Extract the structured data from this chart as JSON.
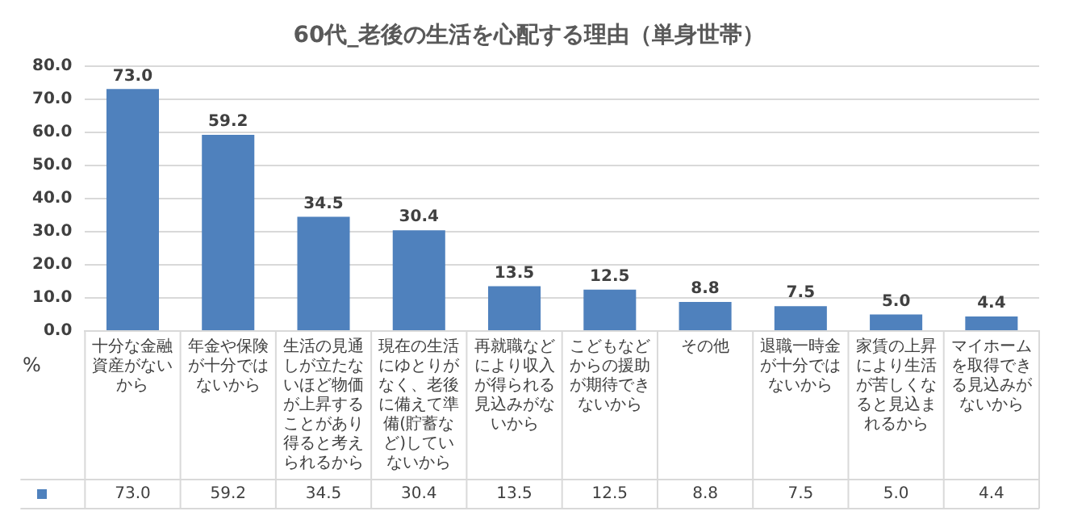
{
  "chart_data": {
    "type": "bar",
    "title": "60代_老後の生活を心配する理由（単身世帯）",
    "ylabel": "%",
    "categories": [
      "十分な金融資産がないから",
      "年金や保険が十分ではないから",
      "生活の見通しが立たないほど物価が上昇することがあり得ると考えられるから",
      "現在の生活にゆとりがなく、老後に備えて準備(貯蓄など)していないから",
      "再就職などにより収入が得られる見込みがないから",
      "こどもなどからの援助が期待できないから",
      "その他",
      "退職一時金が十分ではないから",
      "家賃の上昇により生活が苦しくなると見込まれるから",
      "マイホームを取得できる見込みがないから"
    ],
    "values": [
      73.0,
      59.2,
      34.5,
      30.4,
      13.5,
      12.5,
      8.8,
      7.5,
      5.0,
      4.4
    ],
    "value_labels": [
      "73.0",
      "59.2",
      "34.5",
      "30.4",
      "13.5",
      "12.5",
      "8.8",
      "7.5",
      "5.0",
      "4.4"
    ],
    "color": "#4f81bd",
    "ylim": [
      0,
      80
    ],
    "yticks": [
      {
        "value": 0,
        "label": "0.0"
      },
      {
        "value": 10,
        "label": "10.0"
      },
      {
        "value": 20,
        "label": "20.0"
      },
      {
        "value": 30,
        "label": "30.0"
      },
      {
        "value": 40,
        "label": "40.0"
      },
      {
        "value": 50,
        "label": "50.0"
      },
      {
        "value": 60,
        "label": "60.0"
      },
      {
        "value": 70,
        "label": "70.0"
      },
      {
        "value": 80,
        "label": "80.0"
      }
    ],
    "grid": "y"
  }
}
